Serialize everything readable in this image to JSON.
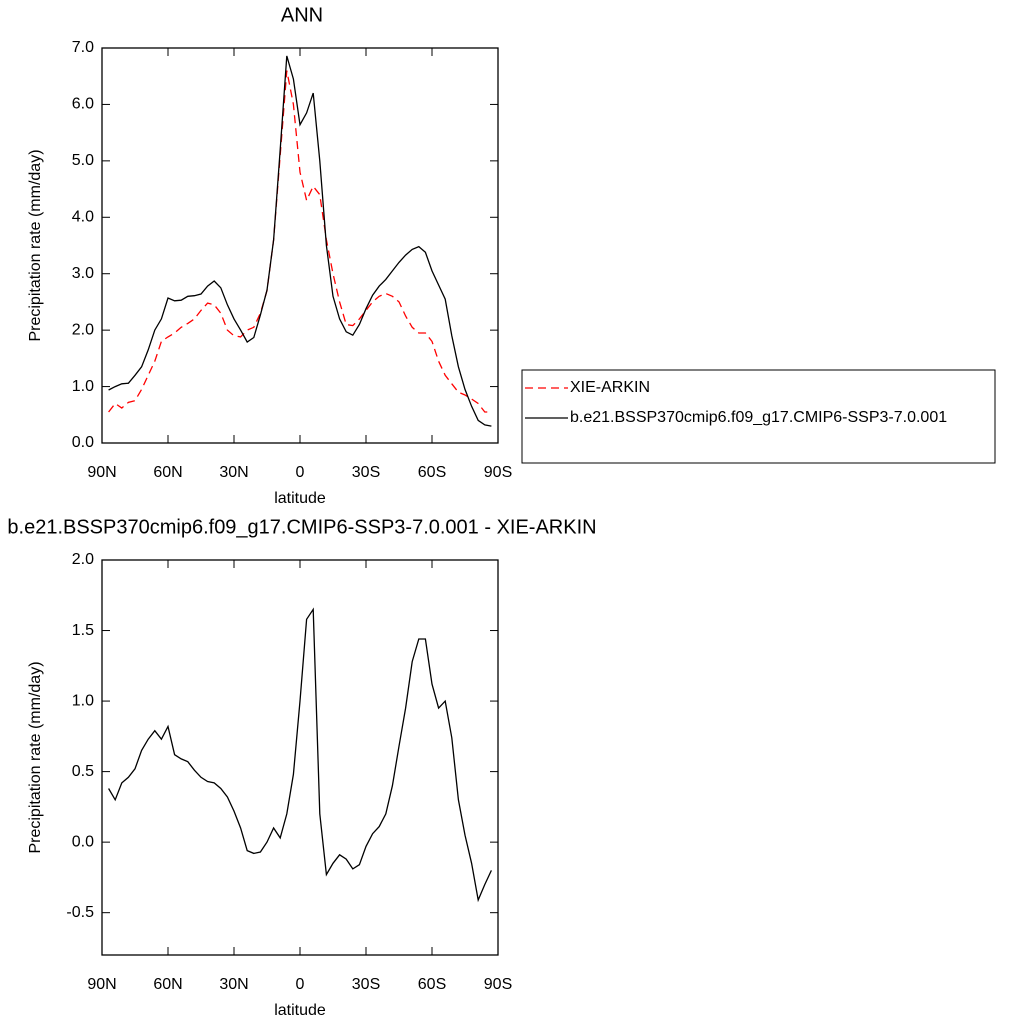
{
  "chart_data": [
    {
      "type": "line",
      "title": "ANN",
      "x_label": "latitude",
      "y_label": "Precipitation rate (mm/day)",
      "x": [
        87,
        84,
        81,
        78,
        75,
        72,
        69,
        66,
        63,
        60,
        57,
        54,
        51,
        48,
        45,
        42,
        39,
        36,
        33,
        30,
        27,
        24,
        21,
        18,
        15,
        12,
        9,
        6,
        3,
        0,
        -3,
        -6,
        -9,
        -12,
        -15,
        -18,
        -21,
        -24,
        -27,
        -30,
        -33,
        -36,
        -39,
        -42,
        -45,
        -48,
        -51,
        -54,
        -57,
        -60,
        -63,
        -66,
        -69,
        -72,
        -75,
        -78,
        -81,
        -84,
        -87
      ],
      "series": [
        {
          "name": "XIE-ARKIN",
          "color": "#ff0000",
          "dash": "dashed",
          "values": [
            0.55,
            0.7,
            0.62,
            0.72,
            0.75,
            0.95,
            1.2,
            1.45,
            1.8,
            1.88,
            1.95,
            2.05,
            2.12,
            2.2,
            2.35,
            2.48,
            2.45,
            2.3,
            2.0,
            1.9,
            1.88,
            2.0,
            2.05,
            2.3,
            2.7,
            3.6,
            5.1,
            6.6,
            6.0,
            4.8,
            4.3,
            4.55,
            4.4,
            3.6,
            3.0,
            2.5,
            2.1,
            2.08,
            2.2,
            2.35,
            2.5,
            2.6,
            2.65,
            2.6,
            2.5,
            2.25,
            2.05,
            1.95,
            1.95,
            1.8,
            1.45,
            1.2,
            1.05,
            0.9,
            0.85,
            0.78,
            0.7,
            0.55,
            0.55
          ]
        },
        {
          "name": "b.e21.BSSP370cmip6.f09_g17.CMIP6-SSP3-7.0.001",
          "color": "#000000",
          "dash": "solid",
          "values": [
            0.94,
            1.0,
            1.05,
            1.06,
            1.2,
            1.35,
            1.65,
            2.0,
            2.2,
            2.57,
            2.52,
            2.53,
            2.6,
            2.61,
            2.64,
            2.78,
            2.87,
            2.75,
            2.45,
            2.2,
            2.0,
            1.79,
            1.87,
            2.27,
            2.71,
            3.6,
            5.2,
            6.86,
            6.45,
            5.64,
            5.85,
            6.2,
            5.0,
            3.5,
            2.6,
            2.2,
            1.97,
            1.91,
            2.1,
            2.38,
            2.62,
            2.78,
            2.9,
            3.05,
            3.2,
            3.33,
            3.43,
            3.48,
            3.38,
            3.05,
            2.8,
            2.55,
            1.9,
            1.35,
            0.95,
            0.65,
            0.4,
            0.32,
            0.3
          ]
        }
      ],
      "xlim": [
        90,
        -90
      ],
      "xticks": [
        {
          "value": 90,
          "label": "90N"
        },
        {
          "value": 60,
          "label": "60N"
        },
        {
          "value": 30,
          "label": "30N"
        },
        0,
        {
          "value": -30,
          "label": "30S"
        },
        {
          "value": -60,
          "label": "60S"
        },
        {
          "value": -90,
          "label": "90S"
        }
      ],
      "ylim": [
        0,
        7
      ],
      "yticks": [
        {
          "value": 0,
          "label": "0.0"
        },
        {
          "value": 1,
          "label": "1.0"
        },
        {
          "value": 2,
          "label": "2.0"
        },
        {
          "value": 3,
          "label": "3.0"
        },
        {
          "value": 4,
          "label": "4.0"
        },
        {
          "value": 5,
          "label": "5.0"
        },
        {
          "value": 6,
          "label": "6.0"
        },
        {
          "value": 7,
          "label": "7.0"
        }
      ],
      "legend": "right",
      "grid": false
    },
    {
      "type": "line",
      "title": "b.e21.BSSP370cmip6.f09_g17.CMIP6-SSP3-7.0.001 - XIE-ARKIN",
      "x_label": "latitude",
      "y_label": "Precipitation rate (mm/day)",
      "x": [
        87,
        84,
        81,
        78,
        75,
        72,
        69,
        66,
        63,
        60,
        57,
        54,
        51,
        48,
        45,
        42,
        39,
        36,
        33,
        30,
        27,
        24,
        21,
        18,
        15,
        12,
        9,
        6,
        3,
        0,
        -3,
        -6,
        -9,
        -12,
        -15,
        -18,
        -21,
        -24,
        -27,
        -30,
        -33,
        -36,
        -39,
        -42,
        -45,
        -48,
        -51,
        -54,
        -57,
        -60,
        -63,
        -66,
        -69,
        -72,
        -75,
        -78,
        -81,
        -84,
        -87
      ],
      "series": [
        {
          "color": "#000000",
          "dash": "solid",
          "values": [
            0.38,
            0.3,
            0.42,
            0.46,
            0.52,
            0.65,
            0.73,
            0.79,
            0.73,
            0.82,
            0.62,
            0.59,
            0.57,
            0.51,
            0.46,
            0.43,
            0.42,
            0.38,
            0.32,
            0.22,
            0.1,
            -0.06,
            -0.08,
            -0.07,
            0.0,
            0.1,
            0.03,
            0.2,
            0.48,
            1.0,
            1.58,
            1.65,
            0.2,
            -0.23,
            -0.15,
            -0.09,
            -0.12,
            -0.19,
            -0.16,
            -0.03,
            0.06,
            0.11,
            0.2,
            0.4,
            0.68,
            0.95,
            1.28,
            1.44,
            1.44,
            1.12,
            0.95,
            1.0,
            0.74,
            0.3,
            0.05,
            -0.15,
            -0.41,
            -0.3,
            -0.2
          ]
        }
      ],
      "xlim": [
        90,
        -90
      ],
      "xticks": [
        {
          "value": 90,
          "label": "90N"
        },
        {
          "value": 60,
          "label": "60N"
        },
        {
          "value": 30,
          "label": "30N"
        },
        0,
        {
          "value": -30,
          "label": "30S"
        },
        {
          "value": -60,
          "label": "60S"
        },
        {
          "value": -90,
          "label": "90S"
        }
      ],
      "ylim": [
        -0.8,
        2.0
      ],
      "yticks": [
        -0.5,
        {
          "value": 0,
          "label": "0.0"
        },
        0.5,
        {
          "value": 1,
          "label": "1.0"
        },
        1.5,
        {
          "value": 2,
          "label": "2.0"
        }
      ],
      "grid": false
    }
  ]
}
